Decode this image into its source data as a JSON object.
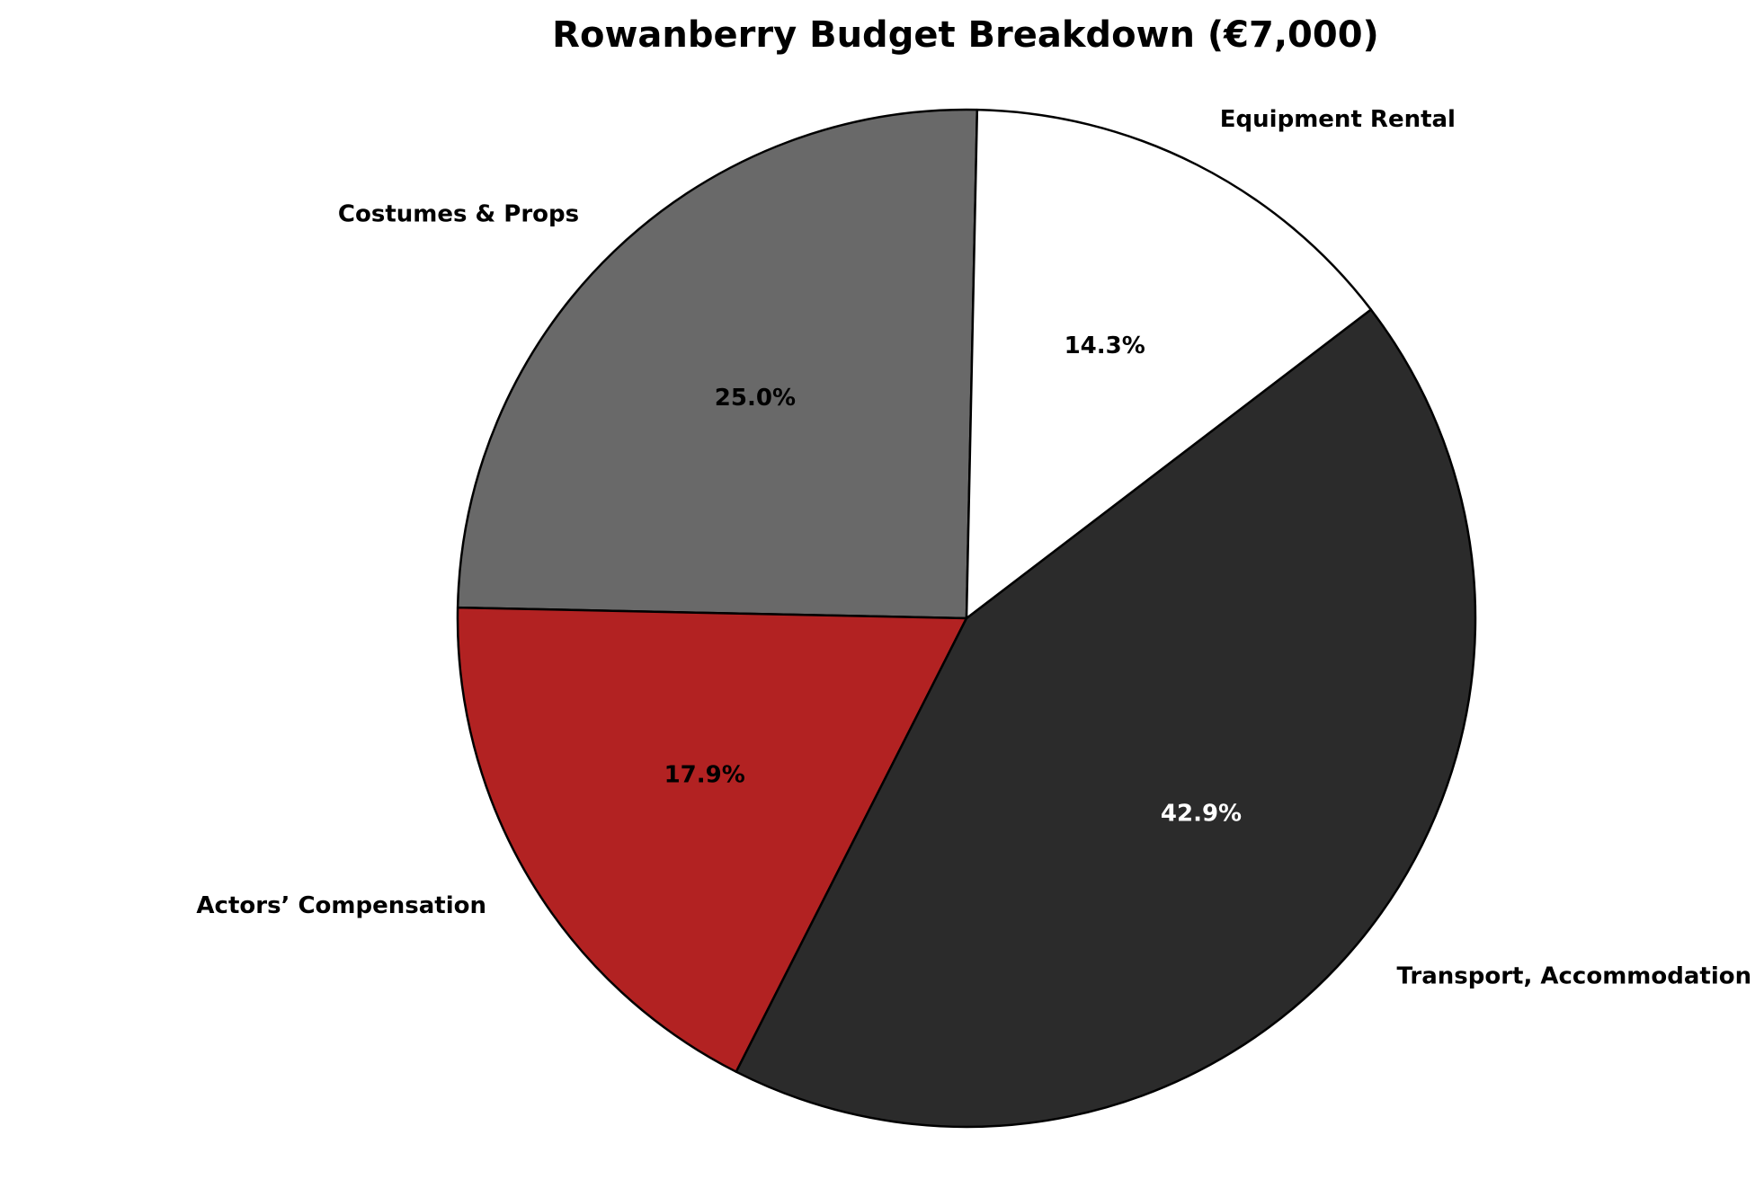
{
  "chart_data": {
    "type": "pie",
    "title": "Rowanberry Budget Breakdown (€7,000)",
    "categories": [
      "Costumes & Props",
      "Actors’ Compensation",
      "Transport, Accommodation & Meals",
      "Equipment Rental"
    ],
    "values": [
      1750,
      1250,
      3000,
      1000
    ],
    "percent_labels": [
      "25.0%",
      "17.9%",
      "42.9%",
      "14.3%"
    ],
    "colors": [
      "#696969",
      "#b22222",
      "#2b2b2b",
      "#ffffff"
    ],
    "percent_label_colors": [
      "#000000",
      "#000000",
      "#ffffff",
      "#000000"
    ],
    "edge_color": "#000000"
  }
}
